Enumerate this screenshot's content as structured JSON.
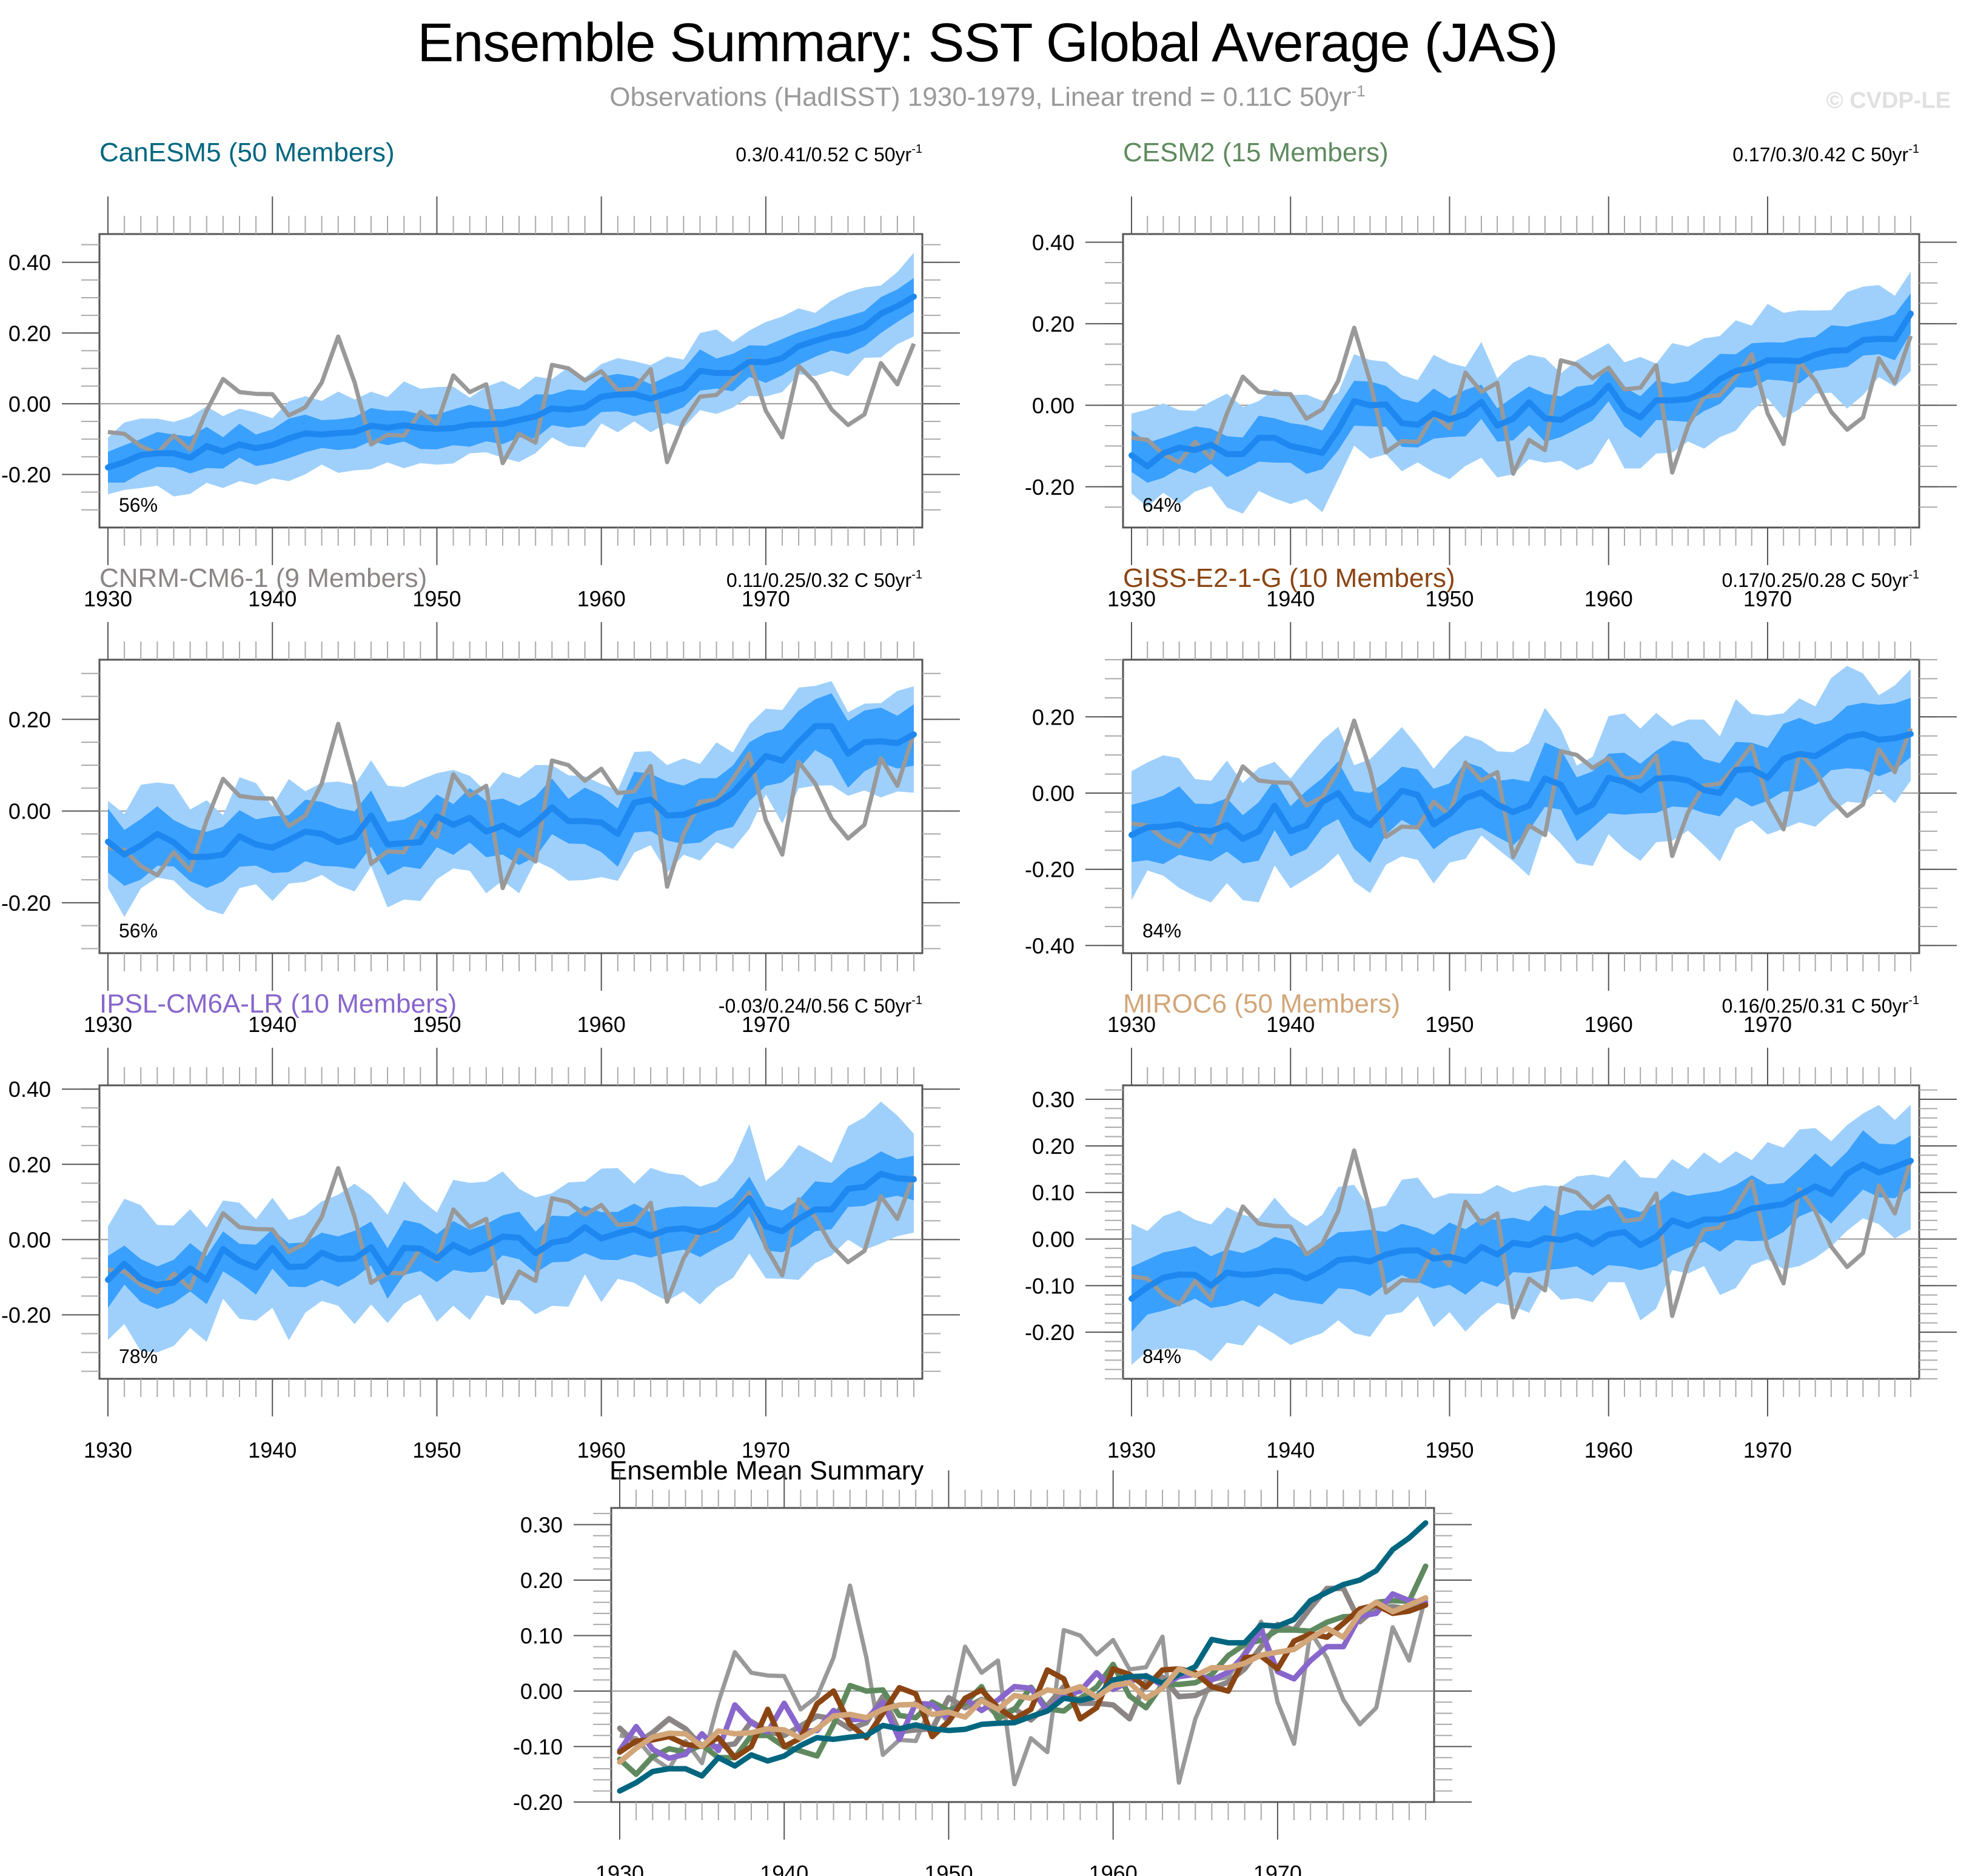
{
  "title": "Ensemble Summary: SST Global Average (JAS)",
  "subtitle": "Observations (HadISST) 1930-1979, Linear trend = 0.11C 50yr",
  "subtitle_sup": "-1",
  "watermark": "© CVDP-LE",
  "chart_data": [
    {
      "type": "area",
      "title": "CanESM5 (50 Members)",
      "title_color": "#00667f",
      "trend_label": "0.3/0.41/0.52 C 50yr",
      "trend_sup": "-1",
      "percent_label": "56%",
      "x": [
        1930,
        1979
      ],
      "xticks": [
        1930,
        1940,
        1950,
        1960,
        1970
      ],
      "ylim": [
        -0.35,
        0.48
      ],
      "yticks": [
        -0.2,
        0.0,
        0.2,
        0.4
      ],
      "ytick_labels": [
        "-0.20",
        "0.00",
        "0.20",
        "0.40"
      ],
      "yminor": 0.05,
      "mean": [
        -0.18,
        -0.165,
        -0.145,
        -0.14,
        -0.14,
        -0.153,
        -0.12,
        -0.135,
        -0.115,
        -0.126,
        -0.117,
        -0.098,
        -0.084,
        -0.087,
        -0.083,
        -0.08,
        -0.062,
        -0.068,
        -0.061,
        -0.068,
        -0.071,
        -0.069,
        -0.06,
        -0.058,
        -0.057,
        -0.046,
        -0.036,
        -0.013,
        -0.017,
        -0.01,
        0.02,
        0.026,
        0.027,
        0.014,
        0.03,
        0.044,
        0.093,
        0.087,
        0.087,
        0.119,
        0.117,
        0.129,
        0.163,
        0.178,
        0.192,
        0.2,
        0.217,
        0.255,
        0.276,
        0.303
      ],
      "inner_spread": 0.05,
      "outer_spread": 0.1
    },
    {
      "type": "area",
      "title": "CESM2 (15 Members)",
      "title_color": "#5f8a5f",
      "trend_label": "0.17/0.3/0.42 C 50yr",
      "trend_sup": "-1",
      "percent_label": "64%",
      "xticks": [
        1930,
        1940,
        1950,
        1960,
        1970
      ],
      "ylim": [
        -0.3,
        0.42
      ],
      "yticks": [
        -0.2,
        0.0,
        0.2,
        0.4
      ],
      "ytick_labels": [
        "-0.20",
        "0.00",
        "0.20",
        "0.40"
      ],
      "yminor": 0.05,
      "mean": [
        -0.123,
        -0.15,
        -0.118,
        -0.104,
        -0.11,
        -0.097,
        -0.12,
        -0.12,
        -0.08,
        -0.08,
        -0.1,
        -0.108,
        -0.117,
        -0.06,
        0.01,
        0.0,
        0.002,
        -0.044,
        -0.048,
        -0.02,
        -0.035,
        -0.022,
        0.008,
        -0.05,
        -0.033,
        0.007,
        -0.032,
        -0.036,
        -0.013,
        0.007,
        0.048,
        -0.009,
        -0.03,
        0.012,
        0.012,
        0.015,
        0.03,
        0.064,
        0.084,
        0.092,
        0.11,
        0.11,
        0.108,
        0.124,
        0.134,
        0.135,
        0.16,
        0.163,
        0.162,
        0.225
      ],
      "inner_spread": 0.05,
      "outer_spread": 0.12
    },
    {
      "type": "area",
      "title": "CNRM-CM6-1 (9 Members)",
      "title_color": "#8c8585",
      "trend_label": "0.11/0.25/0.32 C 50yr",
      "trend_sup": "-1",
      "percent_label": "56%",
      "xticks": [
        1930,
        1940,
        1950,
        1960,
        1970
      ],
      "ylim": [
        -0.31,
        0.33
      ],
      "yticks": [
        -0.2,
        0.0,
        0.2
      ],
      "ytick_labels": [
        "-0.20",
        "0.00",
        "0.20"
      ],
      "yminor": 0.05,
      "mean": [
        -0.067,
        -0.095,
        -0.075,
        -0.05,
        -0.068,
        -0.1,
        -0.1,
        -0.095,
        -0.055,
        -0.073,
        -0.08,
        -0.063,
        -0.045,
        -0.05,
        -0.068,
        -0.057,
        -0.01,
        -0.073,
        -0.07,
        -0.068,
        -0.012,
        -0.03,
        -0.015,
        -0.045,
        -0.032,
        -0.052,
        -0.026,
        0.008,
        -0.022,
        -0.022,
        -0.025,
        -0.05,
        0.018,
        0.025,
        -0.01,
        -0.008,
        0.005,
        0.016,
        0.04,
        0.08,
        0.12,
        0.11,
        0.15,
        0.185,
        0.185,
        0.125,
        0.15,
        0.152,
        0.148,
        0.167
      ],
      "inner_spread": 0.06,
      "outer_spread": 0.11
    },
    {
      "type": "area",
      "title": "GISS-E2-1-G (10 Members)",
      "title_color": "#8b4513",
      "trend_label": "0.17/0.25/0.28 C 50yr",
      "trend_sup": "-1",
      "percent_label": "84%",
      "xticks": [
        1930,
        1940,
        1950,
        1960,
        1970
      ],
      "ylim": [
        -0.42,
        0.35
      ],
      "yticks": [
        -0.4,
        -0.2,
        0.0,
        0.2
      ],
      "ytick_labels": [
        "-0.40",
        "-0.20",
        "0.00",
        "0.20"
      ],
      "yminor": 0.05,
      "mean": [
        -0.11,
        -0.09,
        -0.088,
        -0.082,
        -0.096,
        -0.1,
        -0.084,
        -0.12,
        -0.1,
        -0.033,
        -0.1,
        -0.085,
        -0.023,
        0.0,
        -0.06,
        -0.084,
        -0.04,
        0.006,
        -0.005,
        -0.082,
        -0.055,
        -0.013,
        0.002,
        -0.03,
        -0.05,
        -0.033,
        0.038,
        0.022,
        -0.05,
        -0.03,
        0.04,
        0.03,
        0.007,
        0.038,
        0.04,
        0.033,
        0.008,
        0.0,
        0.06,
        0.063,
        0.04,
        0.09,
        0.103,
        0.097,
        0.122,
        0.148,
        0.155,
        0.14,
        0.144,
        0.155
      ],
      "inner_spread": 0.08,
      "outer_spread": 0.15
    },
    {
      "type": "area",
      "title": "IPSL-CM6A-LR (10 Members)",
      "title_color": "#8866cc",
      "trend_label": "-0.03/0.24/0.56 C 50yr",
      "trend_sup": "-1",
      "percent_label": "78%",
      "xticks": [
        1930,
        1940,
        1950,
        1960,
        1970
      ],
      "ylim": [
        -0.37,
        0.41
      ],
      "yticks": [
        -0.2,
        0.0,
        0.2,
        0.4
      ],
      "ytick_labels": [
        "-0.20",
        "0.00",
        "0.20",
        "0.40"
      ],
      "yminor": 0.05,
      "mean": [
        -0.107,
        -0.064,
        -0.105,
        -0.121,
        -0.114,
        -0.077,
        -0.107,
        -0.025,
        -0.057,
        -0.074,
        -0.022,
        -0.073,
        -0.071,
        -0.035,
        -0.052,
        -0.05,
        -0.02,
        -0.087,
        -0.022,
        -0.024,
        -0.05,
        -0.014,
        -0.035,
        -0.016,
        0.008,
        0.005,
        -0.036,
        -0.008,
        0.0,
        0.033,
        0.003,
        0.017,
        0.028,
        0.01,
        0.026,
        0.03,
        0.02,
        0.034,
        0.065,
        0.11,
        0.035,
        0.022,
        0.055,
        0.08,
        0.08,
        0.135,
        0.14,
        0.175,
        0.163,
        0.16
      ],
      "inner_spread": 0.06,
      "outer_spread": 0.16
    },
    {
      "type": "area",
      "title": "MIROC6 (50 Members)",
      "title_color": "#d2a679",
      "trend_label": "0.16/0.25/0.31 C 50yr",
      "trend_sup": "-1",
      "percent_label": "84%",
      "xticks": [
        1930,
        1940,
        1950,
        1960,
        1970
      ],
      "ylim": [
        -0.3,
        0.33
      ],
      "yticks": [
        -0.2,
        -0.1,
        0.0,
        0.1,
        0.2,
        0.3
      ],
      "ytick_labels": [
        "-0.20",
        "-0.10",
        "0.00",
        "0.10",
        "0.20",
        "0.30"
      ],
      "yminor": 0.02,
      "mean": [
        -0.128,
        -0.103,
        -0.083,
        -0.076,
        -0.077,
        -0.1,
        -0.072,
        -0.077,
        -0.075,
        -0.068,
        -0.07,
        -0.085,
        -0.068,
        -0.045,
        -0.042,
        -0.048,
        -0.033,
        -0.025,
        -0.024,
        -0.042,
        -0.038,
        -0.047,
        -0.017,
        -0.033,
        -0.008,
        -0.013,
        0.002,
        -0.002,
        0.008,
        -0.011,
        0.01,
        0.015,
        -0.013,
        0.005,
        0.04,
        0.028,
        0.042,
        0.042,
        0.05,
        0.065,
        0.07,
        0.075,
        0.095,
        0.113,
        0.097,
        0.14,
        0.16,
        0.143,
        0.155,
        0.168
      ],
      "inner_spread": 0.06,
      "outer_spread": 0.13
    }
  ],
  "observations": {
    "name": "HadISST",
    "color": "#999999",
    "values": [
      -0.08,
      -0.085,
      -0.12,
      -0.14,
      -0.09,
      -0.13,
      -0.02,
      0.07,
      0.033,
      0.028,
      0.027,
      -0.033,
      -0.01,
      0.06,
      0.19,
      0.06,
      -0.115,
      -0.088,
      -0.09,
      -0.023,
      -0.057,
      0.08,
      0.033,
      0.055,
      -0.168,
      -0.085,
      -0.11,
      0.11,
      0.1,
      0.066,
      0.092,
      0.039,
      0.043,
      0.098,
      -0.165,
      -0.05,
      0.02,
      0.025,
      0.07,
      0.125,
      -0.02,
      -0.095,
      0.107,
      0.06,
      -0.016,
      -0.06,
      -0.03,
      0.115,
      0.055,
      0.17
    ]
  },
  "summary": {
    "type": "line",
    "title": "Ensemble Mean Summary",
    "xticks": [
      1930,
      1940,
      1950,
      1960,
      1970
    ],
    "ylim": [
      -0.2,
      0.33
    ],
    "yticks": [
      -0.2,
      -0.1,
      0.0,
      0.1,
      0.2,
      0.3
    ],
    "ytick_labels": [
      "-0.20",
      "-0.10",
      "0.00",
      "0.10",
      "0.20",
      "0.30"
    ],
    "yminor": 0.02
  },
  "band_colors": {
    "outer": "#9fd0fc",
    "inner": "#3aa0fe",
    "mean": "#1e88f0"
  }
}
